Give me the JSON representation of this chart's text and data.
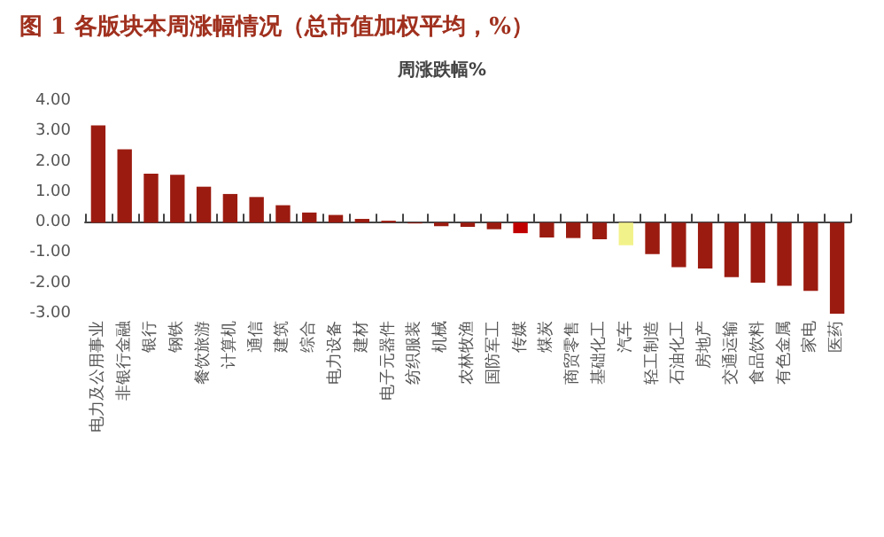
{
  "chart_data": {
    "type": "bar",
    "title": "图 1 各版块本周涨幅情况（总市值加权平均，%）",
    "subtitle": "周涨跌幅%",
    "categories": [
      "电力及公用事业",
      "非银行金融",
      "银行",
      "钢铁",
      "餐饮旅游",
      "计算机",
      "通信",
      "建筑",
      "综合",
      "电力设备",
      "建材",
      "电子元器件",
      "纺织服装",
      "机械",
      "农林牧渔",
      "国防军工",
      "传媒",
      "煤炭",
      "商贸零售",
      "基础化工",
      "汽车",
      "轻工制造",
      "石油化工",
      "房地产",
      "交通运输",
      "食品饮料",
      "有色金属",
      "家电",
      "医药"
    ],
    "values": [
      3.2,
      2.41,
      1.61,
      1.57,
      1.18,
      0.94,
      0.84,
      0.57,
      0.33,
      0.25,
      0.12,
      0.06,
      -0.03,
      -0.12,
      -0.14,
      -0.22,
      -0.35,
      -0.49,
      -0.51,
      -0.55,
      -0.75,
      -1.04,
      -1.47,
      -1.51,
      -1.8,
      -1.98,
      -2.08,
      -2.25,
      -3.0
    ],
    "colors": [
      "#9b1b10",
      "#9b1b10",
      "#9b1b10",
      "#9b1b10",
      "#9b1b10",
      "#9b1b10",
      "#9b1b10",
      "#9b1b10",
      "#9b1b10",
      "#9b1b10",
      "#9b1b10",
      "#9b1b10",
      "#9b1b10",
      "#9b1b10",
      "#9b1b10",
      "#9b1b10",
      "#c00000",
      "#9b1b10",
      "#9b1b10",
      "#9b1b10",
      "#f2f28a",
      "#9b1b10",
      "#9b1b10",
      "#9b1b10",
      "#9b1b10",
      "#9b1b10",
      "#9b1b10",
      "#9b1b10",
      "#9b1b10"
    ],
    "ylim": [
      -3,
      4
    ],
    "yticks": [
      {
        "value": -3,
        "label": "-3.00"
      },
      {
        "value": -2,
        "label": "-2.00"
      },
      {
        "value": -1,
        "label": "-1.00"
      },
      {
        "value": 0,
        "label": "0.00"
      },
      {
        "value": 1,
        "label": "1.00"
      },
      {
        "value": 2,
        "label": "2.00"
      },
      {
        "value": 3,
        "label": "3.00"
      },
      {
        "value": 4,
        "label": "4.00"
      }
    ]
  }
}
